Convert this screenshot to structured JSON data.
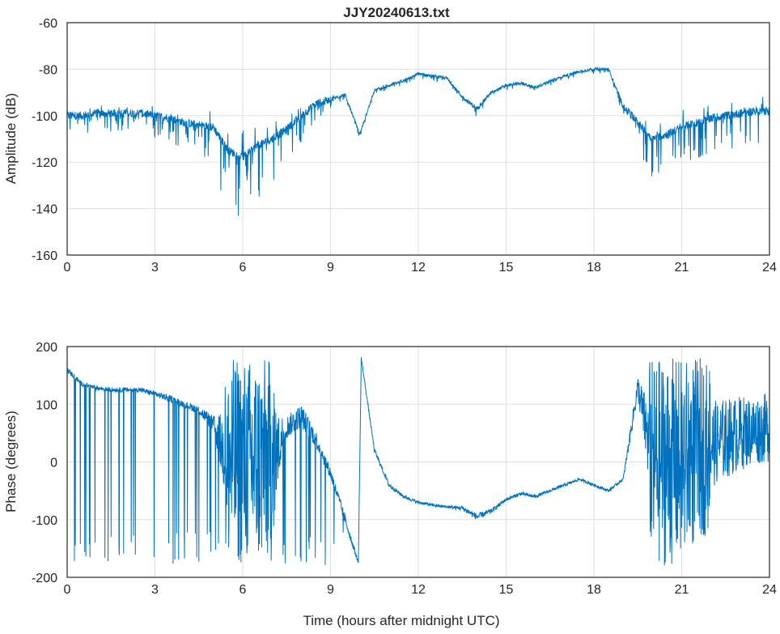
{
  "chart_data": [
    {
      "type": "line",
      "title": "JJY20240613.txt",
      "xlabel": "",
      "ylabel": "Amplitude (dB)",
      "xlim": [
        0,
        24
      ],
      "ylim": [
        -160,
        -60
      ],
      "xticks": [
        "0",
        "3",
        "6",
        "9",
        "12",
        "15",
        "18",
        "21",
        "24"
      ],
      "yticks": [
        "-60",
        "-80",
        "-100",
        "-120",
        "-140",
        "-160"
      ],
      "grid": true,
      "color": "#0072BD",
      "x": [
        0,
        0.5,
        1,
        1.5,
        2,
        2.5,
        3,
        3.5,
        4,
        4.5,
        5,
        5.5,
        6,
        6.5,
        7,
        7.5,
        8,
        8.5,
        9,
        9.5,
        10,
        10.5,
        11,
        11.5,
        12,
        12.5,
        13,
        13.5,
        14,
        14.5,
        15,
        15.5,
        16,
        16.5,
        17,
        17.5,
        18,
        18.5,
        19,
        19.5,
        20,
        20.5,
        21,
        21.5,
        22,
        22.5,
        23,
        23.5,
        24
      ],
      "values": [
        -100,
        -100,
        -99,
        -99,
        -99,
        -99,
        -100,
        -101,
        -103,
        -104,
        -105,
        -115,
        -118,
        -113,
        -110,
        -106,
        -100,
        -95,
        -93,
        -91,
        -108,
        -89,
        -87,
        -85,
        -82,
        -83,
        -84,
        -92,
        -97,
        -90,
        -87,
        -86,
        -88,
        -85,
        -83,
        -81,
        -80,
        -80,
        -96,
        -103,
        -110,
        -108,
        -105,
        -103,
        -101,
        -100,
        -99,
        -98,
        -98
      ],
      "spread": [
        4,
        4,
        4,
        4,
        4,
        4,
        5,
        6,
        6,
        7,
        8,
        15,
        15,
        12,
        10,
        8,
        6,
        4,
        2,
        1,
        1,
        1,
        1,
        1,
        1,
        1,
        1,
        1,
        2,
        1,
        1,
        1,
        1,
        1,
        1,
        1,
        1,
        1,
        2,
        5,
        10,
        10,
        10,
        8,
        8,
        8,
        7,
        7,
        7
      ]
    },
    {
      "type": "line",
      "title": "",
      "xlabel": "Time (hours after midnight UTC)",
      "ylabel": "Phase (degrees)",
      "xlim": [
        0,
        24
      ],
      "ylim": [
        -200,
        200
      ],
      "xticks": [
        "0",
        "3",
        "6",
        "9",
        "12",
        "15",
        "18",
        "21",
        "24"
      ],
      "yticks": [
        "200",
        "100",
        "0",
        "-100",
        "-200"
      ],
      "grid": true,
      "color": "#0072BD",
      "x": [
        0,
        0.5,
        1,
        1.5,
        2,
        2.5,
        3,
        3.5,
        4,
        4.5,
        5,
        5.5,
        6,
        6.5,
        7,
        7.5,
        8,
        8.5,
        9,
        9.5,
        9.95,
        10.05,
        10.5,
        11,
        11.5,
        12,
        12.5,
        13,
        13.5,
        14,
        14.5,
        15,
        15.5,
        16,
        16.5,
        17,
        17.5,
        18,
        18.5,
        19,
        19.5,
        20,
        20.5,
        21,
        21.5,
        22,
        22.5,
        23,
        23.5,
        24
      ],
      "values": [
        160,
        135,
        128,
        125,
        125,
        125,
        118,
        110,
        100,
        90,
        65,
        0,
        0,
        0,
        0,
        60,
        80,
        40,
        -20,
        -100,
        -175,
        180,
        20,
        -40,
        -60,
        -70,
        -75,
        -78,
        -80,
        -95,
        -85,
        -65,
        -55,
        -60,
        -50,
        -40,
        -30,
        -40,
        -50,
        -30,
        130,
        0,
        0,
        0,
        20,
        30,
        40,
        50,
        55,
        60
      ],
      "spread": [
        10,
        8,
        8,
        8,
        8,
        8,
        10,
        12,
        12,
        15,
        30,
        180,
        180,
        180,
        180,
        40,
        40,
        30,
        20,
        20,
        5,
        5,
        8,
        8,
        6,
        5,
        5,
        5,
        8,
        12,
        8,
        6,
        6,
        6,
        5,
        5,
        5,
        5,
        5,
        5,
        40,
        180,
        180,
        180,
        160,
        150,
        140,
        130,
        120,
        120
      ]
    }
  ]
}
